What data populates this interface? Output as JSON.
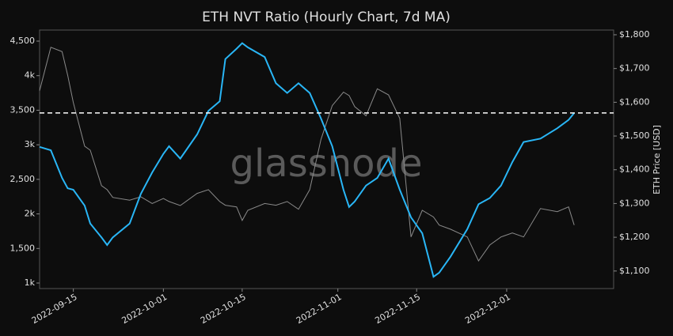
{
  "chart_data": {
    "type": "line",
    "title": "ETH NVT Ratio (Hourly Chart, 7d MA)",
    "y2label": "ETH Price [USD]",
    "watermark": "glassnode",
    "x": [
      "2022-09-09",
      "2022-09-11",
      "2022-09-13",
      "2022-09-14",
      "2022-09-15",
      "2022-09-17",
      "2022-09-18",
      "2022-09-20",
      "2022-09-21",
      "2022-09-22",
      "2022-09-25",
      "2022-09-27",
      "2022-09-29",
      "2022-10-01",
      "2022-10-02",
      "2022-10-04",
      "2022-10-07",
      "2022-10-09",
      "2022-10-11",
      "2022-10-12",
      "2022-10-14",
      "2022-10-15",
      "2022-10-16",
      "2022-10-19",
      "2022-10-21",
      "2022-10-23",
      "2022-10-25",
      "2022-10-27",
      "2022-10-29",
      "2022-10-31",
      "2022-11-02",
      "2022-11-03",
      "2022-11-04",
      "2022-11-06",
      "2022-11-08",
      "2022-11-10",
      "2022-11-12",
      "2022-11-14",
      "2022-11-16",
      "2022-11-18",
      "2022-11-19",
      "2022-11-21",
      "2022-11-24",
      "2022-11-26",
      "2022-11-28",
      "2022-11-30",
      "2022-12-02",
      "2022-12-04",
      "2022-12-07",
      "2022-12-10",
      "2022-12-12",
      "2022-12-13"
    ],
    "series": [
      {
        "name": "NVT Ratio",
        "color": "#29b6f6",
        "values": [
          2970,
          2920,
          2520,
          2370,
          2350,
          2120,
          1860,
          1660,
          1550,
          1660,
          1860,
          2290,
          2600,
          2870,
          2980,
          2800,
          3150,
          3490,
          3630,
          4240,
          4390,
          4470,
          4410,
          4270,
          3890,
          3750,
          3890,
          3750,
          3380,
          2980,
          2350,
          2100,
          2180,
          2410,
          2520,
          2800,
          2350,
          1950,
          1720,
          1090,
          1150,
          1380,
          1780,
          2140,
          2230,
          2410,
          2750,
          3040,
          3090,
          3240,
          3360,
          3460
        ]
      },
      {
        "name": "ETH Price",
        "color": "#8a8a8a",
        "axis": "y2",
        "values": [
          1634,
          1763,
          1750,
          1680,
          1599,
          1470,
          1458,
          1353,
          1341,
          1318,
          1310,
          1320,
          1300,
          1315,
          1306,
          1294,
          1330,
          1341,
          1306,
          1295,
          1290,
          1250,
          1280,
          1300,
          1295,
          1306,
          1283,
          1341,
          1490,
          1590,
          1630,
          1620,
          1587,
          1560,
          1640,
          1622,
          1552,
          1201,
          1280,
          1260,
          1236,
          1224,
          1201,
          1130,
          1177,
          1201,
          1213,
          1201,
          1285,
          1276,
          1290,
          1236
        ]
      }
    ],
    "hline": 3460,
    "xlim": [
      "2022-09-09",
      "2022-12-20"
    ],
    "xticks": [
      "2022-09-15",
      "2022-10-01",
      "2022-10-15",
      "2022-11-01",
      "2022-11-15",
      "2022-12-01"
    ],
    "ylim": [
      920,
      4660
    ],
    "yticks": [
      {
        "value": 1000,
        "label": "1k"
      },
      {
        "value": 1500,
        "label": "1,500"
      },
      {
        "value": 2000,
        "label": "2k"
      },
      {
        "value": 2500,
        "label": "2,500"
      },
      {
        "value": 3000,
        "label": "3k"
      },
      {
        "value": 3500,
        "label": "3,500"
      },
      {
        "value": 4000,
        "label": "4k"
      },
      {
        "value": 4500,
        "label": "4,500"
      }
    ],
    "y2lim": [
      1048,
      1814
    ],
    "y2ticks": [
      {
        "value": 1100,
        "label": "$1,100"
      },
      {
        "value": 1200,
        "label": "$1,200"
      },
      {
        "value": 1300,
        "label": "$1,300"
      },
      {
        "value": 1400,
        "label": "$1,400"
      },
      {
        "value": 1500,
        "label": "$1,500"
      },
      {
        "value": 1600,
        "label": "$1,600"
      },
      {
        "value": 1700,
        "label": "$1,700"
      },
      {
        "value": 1800,
        "label": "$1,800"
      }
    ]
  }
}
